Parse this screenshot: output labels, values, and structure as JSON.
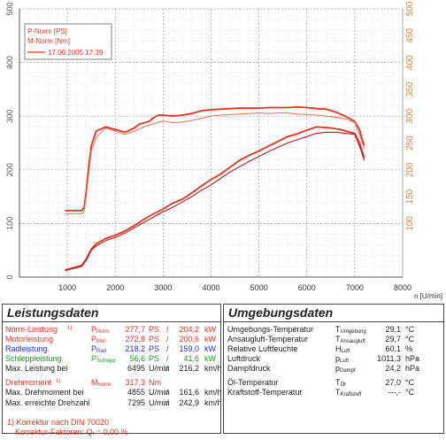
{
  "chart_data": {
    "type": "line",
    "title": "",
    "xlabel": "n [U/min]",
    "xlim": [
      0,
      8000
    ],
    "xticks": [
      0,
      1000,
      2000,
      3000,
      4000,
      5000,
      6000,
      7000,
      8000
    ],
    "ylim_left": [
      0,
      500
    ],
    "yticks_left": [
      0,
      100,
      200,
      300,
      400,
      500
    ],
    "ylim_right": [
      0,
      500
    ],
    "yticks_right": [
      100,
      150,
      200,
      250,
      300,
      350,
      400,
      450,
      500
    ],
    "grid": true,
    "legend_position": "top-left",
    "legend": [
      "P-Norm [PS]",
      "M-Norm [Nm]",
      "17.06.2005 17:39"
    ],
    "colors": {
      "primary": "#e8321e",
      "secondary": "#f07a5c",
      "axis_left": "#555555",
      "axis_right": "#f07820"
    },
    "series": [
      {
        "name": "M-Norm [Nm]",
        "axis": "right",
        "x": [
          950,
          1300,
          1350,
          1400,
          1450,
          1500,
          1600,
          1800,
          2000,
          2200,
          2400,
          2500,
          2700,
          2800,
          2900,
          3000,
          3200,
          3400,
          3600,
          3800,
          4000,
          4200,
          4400,
          4600,
          4800,
          5000,
          5200,
          5400,
          5600,
          5800,
          6000,
          6200,
          6400,
          6600,
          6800,
          7000,
          7100,
          7150,
          7200
        ],
        "y": [
          124,
          124,
          130,
          165,
          210,
          245,
          272,
          280,
          275,
          270,
          278,
          285,
          290,
          297,
          302,
          302,
          300,
          302,
          305,
          310,
          312,
          313,
          314,
          315,
          315,
          315,
          316,
          316,
          316,
          317,
          316,
          314,
          313,
          308,
          300,
          290,
          275,
          258,
          245
        ]
      },
      {
        "name": "",
        "axis": "right",
        "x": [
          950,
          1300,
          1350,
          1400,
          1450,
          1500,
          1600,
          1800,
          2000,
          2200,
          2400,
          2600,
          2800,
          3000,
          3200,
          3400,
          3600,
          3800,
          4000,
          4200,
          4400,
          4600,
          4800,
          5000,
          5200,
          5400,
          5600,
          5800,
          6000,
          6200,
          6400,
          6600,
          6800,
          7000,
          7100,
          7200
        ],
        "y": [
          118,
          118,
          122,
          155,
          195,
          235,
          260,
          278,
          272,
          266,
          272,
          280,
          286,
          291,
          288,
          289,
          292,
          296,
          300,
          302,
          303,
          304,
          305,
          306,
          305,
          306,
          306,
          304,
          303,
          302,
          300,
          298,
          295,
          288,
          265,
          240
        ]
      },
      {
        "name": "P-Norm [PS]",
        "axis": "left",
        "x": [
          950,
          1300,
          1400,
          1500,
          1600,
          1800,
          2000,
          2200,
          2400,
          2600,
          2800,
          3000,
          3200,
          3400,
          3600,
          3800,
          4000,
          4200,
          4400,
          4600,
          4800,
          5000,
          5200,
          5400,
          5600,
          5800,
          6000,
          6200,
          6495,
          6700,
          6900,
          7000,
          7100,
          7200
        ],
        "y": [
          13,
          22,
          35,
          52,
          62,
          72,
          78,
          86,
          96,
          108,
          118,
          127,
          138,
          145,
          157,
          170,
          182,
          192,
          205,
          218,
          227,
          235,
          244,
          253,
          262,
          267,
          274,
          280,
          278,
          275,
          270,
          268,
          250,
          222
        ]
      },
      {
        "name": "",
        "axis": "left",
        "x": [
          950,
          1300,
          1400,
          1500,
          1600,
          1800,
          2000,
          2200,
          2400,
          2600,
          2800,
          3000,
          3200,
          3400,
          3600,
          3800,
          4000,
          4200,
          4400,
          4600,
          4800,
          5000,
          5200,
          5400,
          5600,
          5800,
          6000,
          6200,
          6400,
          6600,
          6800,
          7000,
          7100,
          7200
        ],
        "y": [
          12,
          20,
          32,
          50,
          58,
          68,
          74,
          82,
          92,
          102,
          112,
          122,
          130,
          140,
          150,
          162,
          172,
          184,
          196,
          206,
          216,
          225,
          234,
          242,
          250,
          256,
          262,
          268,
          270,
          270,
          268,
          266,
          244,
          218
        ]
      }
    ]
  },
  "leistung": {
    "title": "Leistungsdaten",
    "rows": [
      {
        "label": "Norm-Leistung",
        "note": "1)",
        "sym": "P",
        "sub": "Norm",
        "v1": "277,7",
        "u1": "PS",
        "sep": "/",
        "v2": "204,2",
        "u2": "kW",
        "color": "#e8321e"
      },
      {
        "label": "Motorleistung",
        "note": "",
        "sym": "P",
        "sub": "Mot",
        "v1": "272,8",
        "u1": "PS",
        "sep": "/",
        "v2": "200,6",
        "u2": "kW",
        "color": "#e8321e"
      },
      {
        "label": "Radleistung",
        "note": "",
        "sym": "P",
        "sub": "Rad",
        "v1": "218,2",
        "u1": "PS",
        "sep": "/",
        "v2": "159,0",
        "u2": "kW",
        "color": "#2233cc"
      },
      {
        "label": "Schleppleistung",
        "note": "",
        "sym": "P",
        "sub": "Schlepp",
        "v1": "56,6",
        "u1": "PS",
        "sep": "/",
        "v2": "41,6",
        "u2": "kW",
        "color": "#229922"
      },
      {
        "label": "Max. Leistung bei",
        "note": "",
        "sym": "",
        "sub": "",
        "v1": "6495",
        "u1": "U/min",
        "sep": "/",
        "v2": "216,2",
        "u2": "km/h",
        "color": "#222222"
      },
      {
        "label": "Drehmoment",
        "note": "1)",
        "sym": "M",
        "sub": "Norm",
        "v1": "317,3",
        "u1": "Nm",
        "sep": "",
        "v2": "",
        "u2": "",
        "color": "#e8321e"
      },
      {
        "label": "Max. Drehmoment bei",
        "note": "",
        "sym": "",
        "sub": "",
        "v1": "4855",
        "u1": "U/min",
        "sep": "/",
        "v2": "161,6",
        "u2": "km/h",
        "color": "#222222"
      },
      {
        "label": "Max. erreichte Drehzahl",
        "note": "",
        "sym": "",
        "sub": "",
        "v1": "7295",
        "u1": "U/min",
        "sep": "/",
        "v2": "242,9",
        "u2": "km/h",
        "color": "#222222"
      }
    ],
    "footnote1": "1) Korrektur nach DIN 70020",
    "footnote2": "Korrektur-Faktoren: Q",
    "footnote2_sub": "f",
    "footnote2_val": "= 0,00 %"
  },
  "umgebung": {
    "title": "Umgebungsdaten",
    "rows": [
      {
        "label": "Umgebungs-Temperatur",
        "sym": "T",
        "sub": "Umgebung",
        "value": "29,1",
        "unit": "°C"
      },
      {
        "label": "Ansaugluft-Temperatur",
        "sym": "T",
        "sub": "Ansaugluft",
        "value": "29,7",
        "unit": "°C"
      },
      {
        "label": "Relative Luftfeuchte",
        "sym": "H",
        "sub": "Luft",
        "value": "60,1",
        "unit": "%"
      },
      {
        "label": "Luftdruck",
        "sym": "p",
        "sub": "Luft",
        "value": "1011,3",
        "unit": "hPa"
      },
      {
        "label": "Dampfdruck",
        "sym": "p",
        "sub": "Dampf",
        "value": "24,2",
        "unit": "hPa"
      },
      {
        "label": "Öl-Temperatur",
        "sym": "T",
        "sub": "Öl",
        "value": "27,0",
        "unit": "°C"
      },
      {
        "label": "Kraftstoff-Temperatur",
        "sym": "T",
        "sub": "Kraftstoff",
        "value": "---,-",
        "unit": "°C"
      }
    ]
  }
}
